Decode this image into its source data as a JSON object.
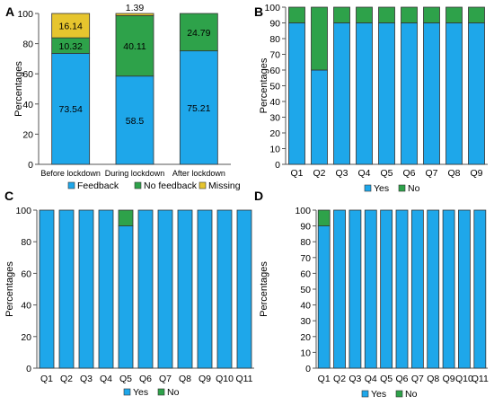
{
  "colors": {
    "blue": "#1ea7ea",
    "green": "#2ea24a",
    "yellow": "#e6c52e",
    "orange": "#f0a326",
    "axis": "#555555",
    "edge": "#333333"
  },
  "chart_data": [
    {
      "panel_label": "A",
      "type": "bar",
      "stacked": true,
      "categories": [
        "Before lockdown",
        "During lockdown",
        "After lockdown"
      ],
      "series": [
        {
          "name": "Feedback",
          "values": [
            73.54,
            58.5,
            75.21
          ],
          "color": "#1ea7ea"
        },
        {
          "name": "No feedback",
          "values": [
            10.32,
            40.11,
            24.79
          ],
          "color": "#2ea24a"
        },
        {
          "name": "Missing",
          "values": [
            16.14,
            1.39,
            0
          ],
          "color": "#e6c52e"
        }
      ],
      "data_labels": [
        [
          "73.54",
          "10.32",
          "16.14"
        ],
        [
          "58.5",
          "40.11",
          "1.39"
        ],
        [
          "75.21",
          "24.79",
          ""
        ]
      ],
      "ylabel": "Percentages",
      "ylim": [
        0,
        100
      ],
      "yticks": [
        "0",
        "20",
        "40",
        "60",
        "80",
        "100"
      ],
      "legend": "bottom"
    },
    {
      "panel_label": "B",
      "type": "bar",
      "stacked": true,
      "categories": [
        "Q1",
        "Q2",
        "Q3",
        "Q4",
        "Q5",
        "Q6",
        "Q7",
        "Q8",
        "Q9"
      ],
      "series": [
        {
          "name": "Yes",
          "values": [
            90,
            60,
            90,
            90,
            90,
            90,
            90,
            90,
            90
          ],
          "color": "#1ea7ea"
        },
        {
          "name": "No",
          "values": [
            10,
            40,
            10,
            10,
            10,
            10,
            10,
            10,
            10
          ],
          "color": "#2ea24a"
        }
      ],
      "ylabel": "Percentages",
      "ylim": [
        0,
        100
      ],
      "yticks": [
        "0",
        "10",
        "20",
        "30",
        "40",
        "50",
        "60",
        "70",
        "80",
        "90",
        "100"
      ],
      "legend": "bottom"
    },
    {
      "panel_label": "C",
      "type": "bar",
      "stacked": true,
      "categories": [
        "Q1",
        "Q2",
        "Q3",
        "Q4",
        "Q5",
        "Q6",
        "Q7",
        "Q8",
        "Q9",
        "Q10",
        "Q11"
      ],
      "series": [
        {
          "name": "Yes",
          "values": [
            100,
            100,
            100,
            100,
            90,
            100,
            100,
            100,
            100,
            100,
            100
          ],
          "color": "#1ea7ea"
        },
        {
          "name": "No",
          "values": [
            0,
            0,
            0,
            0,
            10,
            0,
            0,
            0,
            0,
            0,
            0
          ],
          "color": "#2ea24a"
        }
      ],
      "ylabel": "Percentages",
      "ylim": [
        0,
        100
      ],
      "yticks": [
        "0",
        "20",
        "40",
        "60",
        "80",
        "100"
      ],
      "legend": "bottom"
    },
    {
      "panel_label": "D",
      "type": "bar",
      "stacked": true,
      "categories": [
        "Q1",
        "Q2",
        "Q3",
        "Q4",
        "Q5",
        "Q6",
        "Q7",
        "Q8",
        "Q9",
        "Q10",
        "Q11"
      ],
      "series": [
        {
          "name": "Yes",
          "values": [
            90,
            100,
            100,
            100,
            100,
            100,
            100,
            100,
            100,
            100,
            100
          ],
          "color": "#1ea7ea"
        },
        {
          "name": "No",
          "values": [
            10,
            0,
            0,
            0,
            0,
            0,
            0,
            0,
            0,
            0,
            0
          ],
          "color": "#2ea24a"
        }
      ],
      "ylabel": "Percentages",
      "ylim": [
        0,
        100
      ],
      "yticks": [
        "0",
        "10",
        "20",
        "30",
        "40",
        "50",
        "60",
        "70",
        "80",
        "90",
        "100"
      ],
      "legend": "bottom"
    }
  ]
}
